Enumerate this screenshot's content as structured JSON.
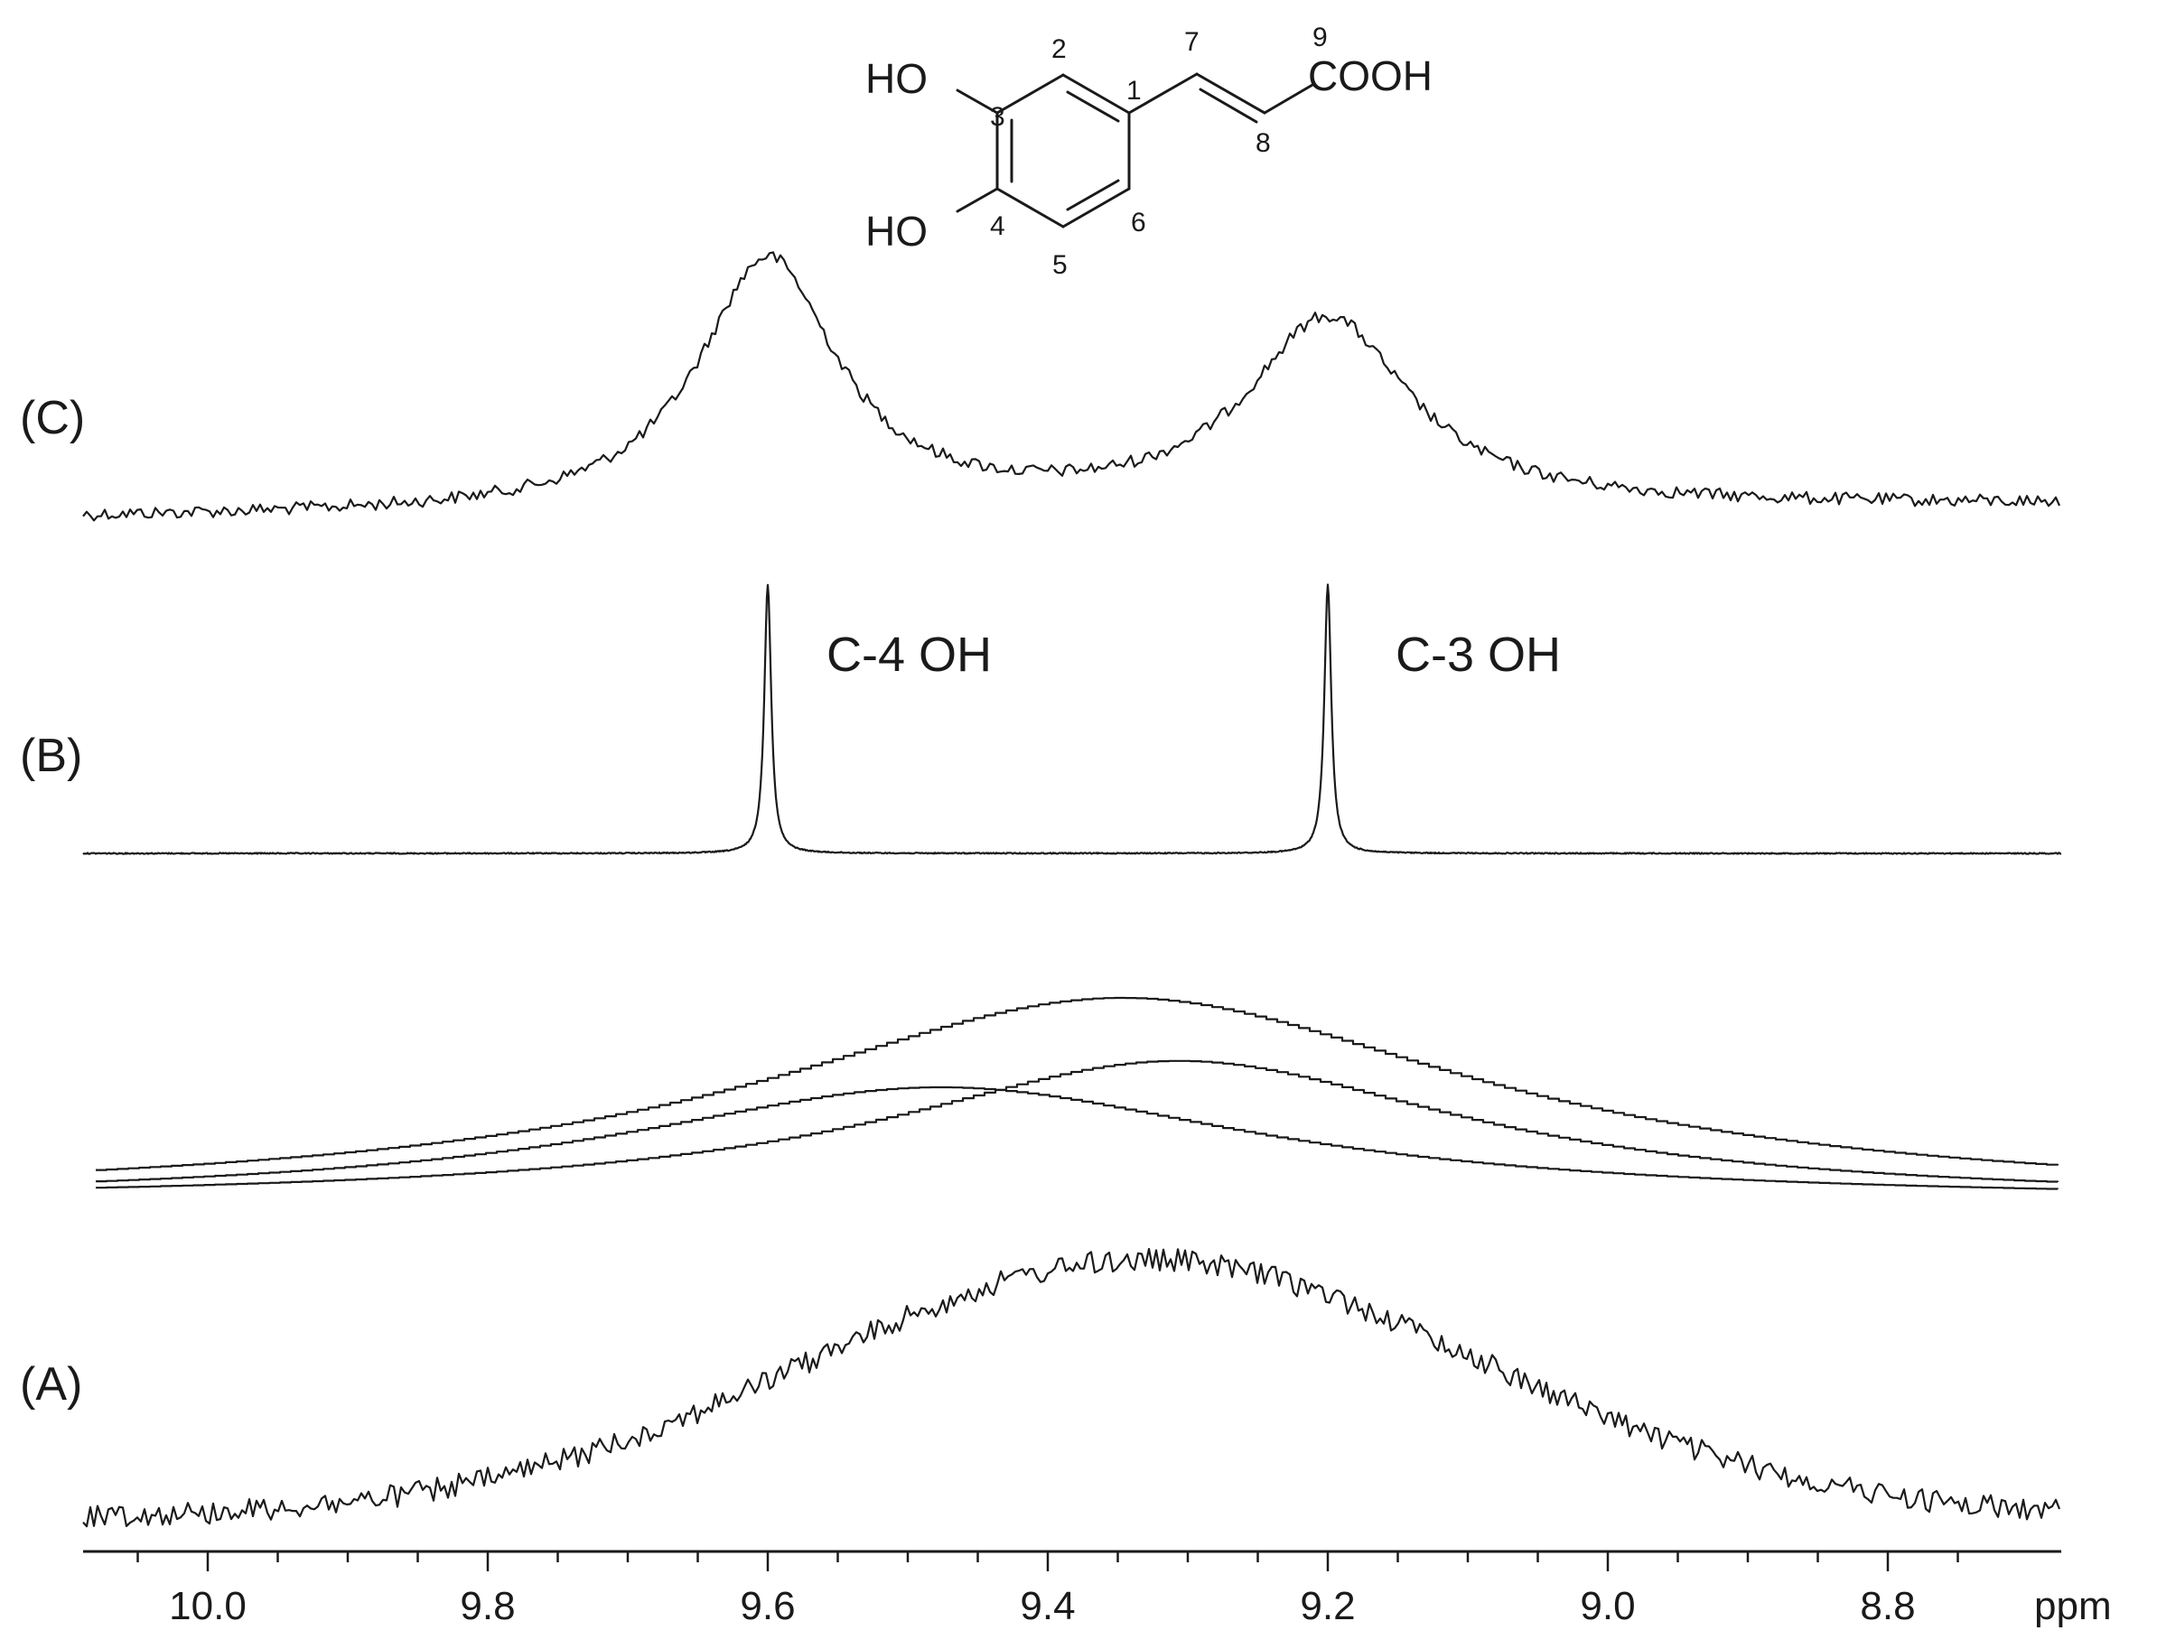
{
  "chart_data": {
    "type": "line",
    "x_axis": {
      "unit_label": "ppm",
      "range": [
        10.09,
        8.69
      ],
      "reversed": true,
      "tick_labels": [
        "10.0",
        "9.8",
        "9.6",
        "9.4",
        "9.2",
        "9.0",
        "8.8"
      ],
      "tick_values": [
        10.0,
        9.8,
        9.6,
        9.4,
        9.2,
        9.0,
        8.8
      ]
    },
    "grid": false,
    "panels": [
      {
        "label": "(C)",
        "description_type": "noisy doublet",
        "peaks": [
          {
            "center": 9.6,
            "relative_height": 1.0,
            "width": 0.12
          },
          {
            "center": 9.2,
            "relative_height": 0.75,
            "width": 0.14
          }
        ]
      },
      {
        "label": "(B)",
        "description_type": "sharp doublet",
        "peaks": [
          {
            "center": 9.6,
            "label": "C-4 OH",
            "relative_height": 1.0
          },
          {
            "center": 9.2,
            "label": "C-3 OH",
            "relative_height": 1.0
          }
        ]
      },
      {
        "label": "",
        "description_type": "deconvolution",
        "components": [
          {
            "center": 9.48,
            "relative_height": 0.56
          },
          {
            "center": 9.31,
            "relative_height": 0.69
          },
          {
            "center": 9.35,
            "relative_height": 1.0
          }
        ]
      },
      {
        "label": "(A)",
        "description_type": "broad noisy",
        "peaks": [
          {
            "center": 9.33,
            "relative_height": 1.0,
            "width": 0.55
          }
        ]
      }
    ]
  },
  "molecule": {
    "substituents": {
      "ho_top": "HO",
      "ho_bottom": "HO",
      "cooh": "COOH"
    },
    "atom_numbers": [
      "1",
      "2",
      "3",
      "4",
      "5",
      "6",
      "7",
      "8",
      "9"
    ]
  }
}
